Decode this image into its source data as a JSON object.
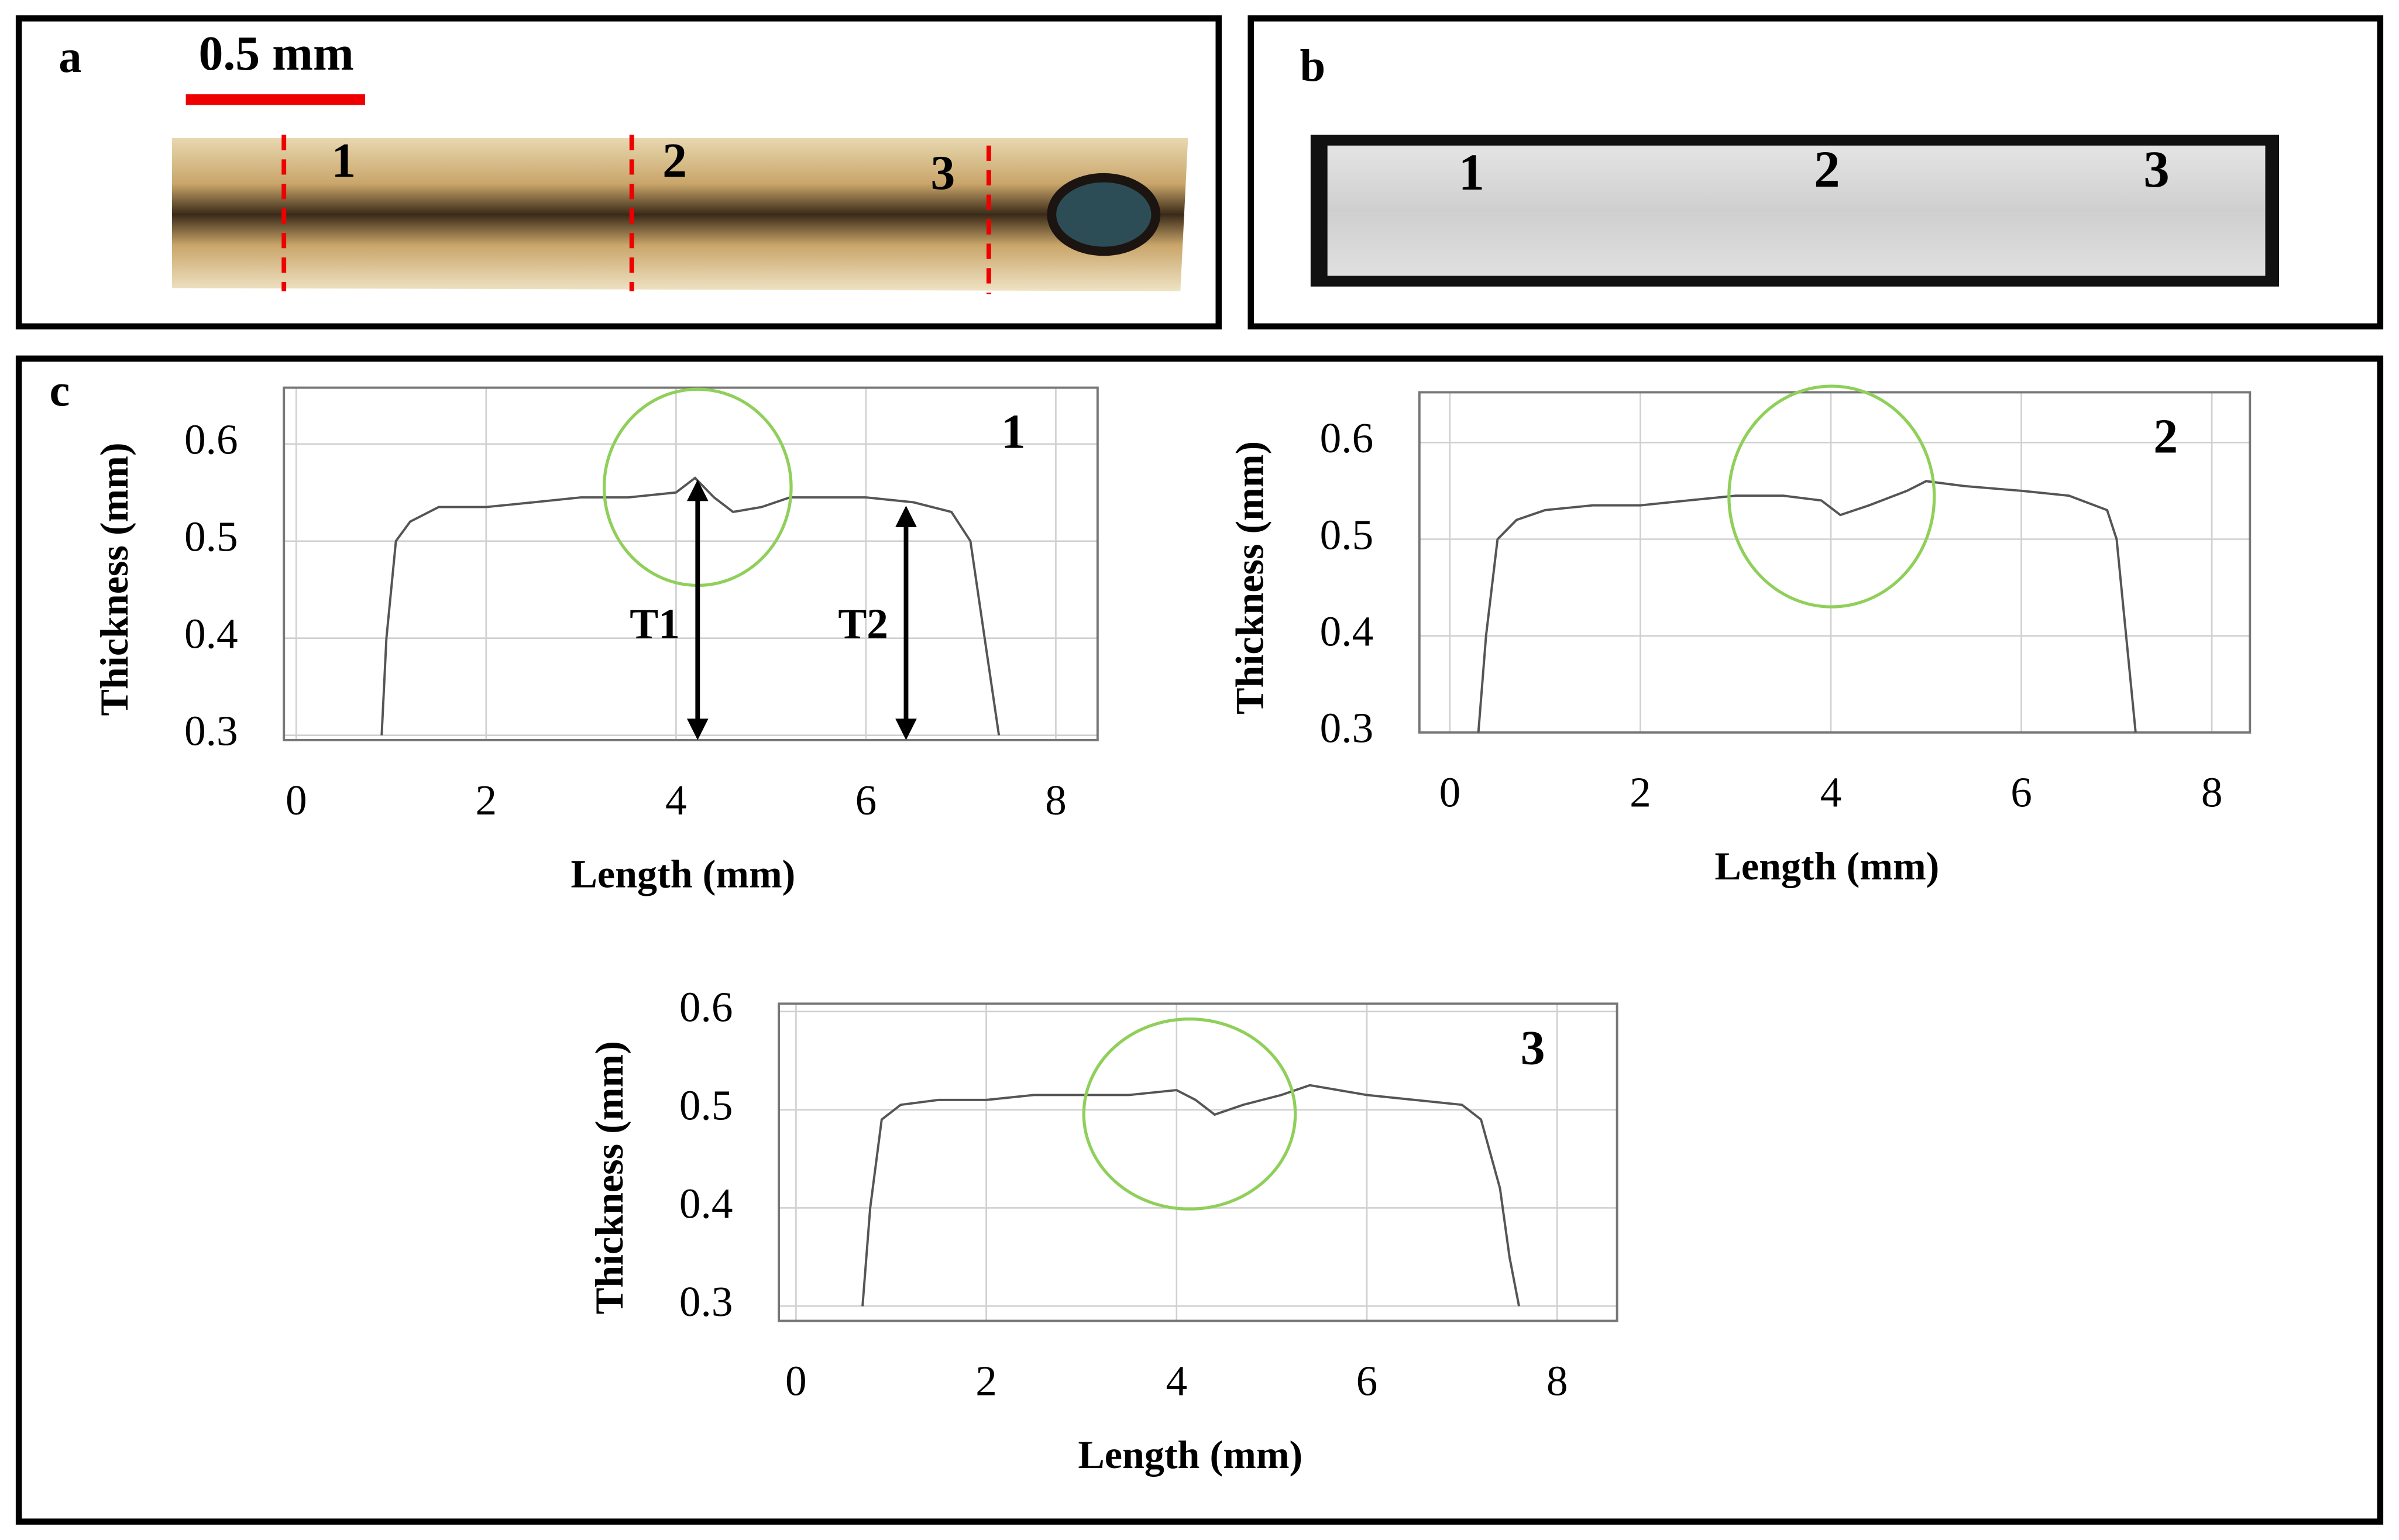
{
  "panels": {
    "a": {
      "label": "a",
      "scale": "0.5 mm",
      "marks": [
        "1",
        "2",
        "3"
      ]
    },
    "b": {
      "label": "b",
      "marks": [
        "1",
        "2",
        "3"
      ]
    },
    "c": {
      "label": "c"
    }
  },
  "chart_data": [
    {
      "type": "line",
      "title": "1",
      "x_label": "Length (mm)",
      "y_label": "Thickness (mm)",
      "color": "#555555",
      "grid": true,
      "x": [
        0.9,
        0.95,
        1.05,
        1.2,
        1.5,
        2,
        2.5,
        3,
        3.5,
        4,
        4.2,
        4.4,
        4.6,
        4.9,
        5.2,
        5.6,
        6,
        6.5,
        6.9,
        7.1,
        7.25,
        7.4
      ],
      "values": [
        0.3,
        0.4,
        0.5,
        0.52,
        0.535,
        0.535,
        0.54,
        0.545,
        0.545,
        0.55,
        0.565,
        0.545,
        0.53,
        0.535,
        0.545,
        0.545,
        0.545,
        0.54,
        0.53,
        0.5,
        0.4,
        0.3
      ],
      "xlim": [
        -0.13,
        8.44
      ],
      "xticks": [
        0,
        2,
        4,
        6,
        8
      ],
      "ylim": [
        0.295,
        0.658
      ],
      "yticks": [
        0.3,
        0.4,
        0.5,
        0.6
      ],
      "annotations": [
        "T1",
        "T2"
      ]
    },
    {
      "type": "line",
      "title": "2",
      "x_label": "Length (mm)",
      "y_label": "Thickness (mm)",
      "color": "#555555",
      "grid": true,
      "x": [
        0.3,
        0.38,
        0.5,
        0.7,
        1,
        1.5,
        2,
        2.5,
        3,
        3.5,
        3.9,
        4.1,
        4.4,
        4.8,
        5.0,
        5.4,
        6,
        6.5,
        6.9,
        7.0,
        7.1,
        7.2
      ],
      "values": [
        0.3,
        0.4,
        0.5,
        0.52,
        0.53,
        0.535,
        0.535,
        0.54,
        0.545,
        0.545,
        0.54,
        0.525,
        0.535,
        0.55,
        0.56,
        0.555,
        0.55,
        0.545,
        0.53,
        0.5,
        0.4,
        0.3
      ],
      "xlim": [
        -0.32,
        8.4
      ],
      "xticks": [
        0,
        2,
        4,
        6,
        8
      ],
      "ylim": [
        0.3,
        0.652
      ],
      "yticks": [
        0.3,
        0.4,
        0.5,
        0.6
      ]
    },
    {
      "type": "line",
      "title": "3",
      "x_label": "Length (mm)",
      "y_label": "Thickness (mm)",
      "color": "#555555",
      "grid": true,
      "x": [
        0.7,
        0.78,
        0.9,
        1.1,
        1.5,
        2,
        2.5,
        3,
        3.5,
        4,
        4.2,
        4.4,
        4.7,
        5.1,
        5.4,
        6,
        6.5,
        7,
        7.2,
        7.4,
        7.5,
        7.6
      ],
      "values": [
        0.3,
        0.4,
        0.49,
        0.505,
        0.51,
        0.51,
        0.515,
        0.515,
        0.515,
        0.52,
        0.51,
        0.495,
        0.505,
        0.515,
        0.525,
        0.515,
        0.51,
        0.505,
        0.49,
        0.42,
        0.35,
        0.3
      ],
      "xlim": [
        -0.18,
        8.63
      ],
      "xticks": [
        0,
        2,
        4,
        6,
        8
      ],
      "ylim": [
        0.285,
        0.608
      ],
      "yticks": [
        0.3,
        0.4,
        0.5,
        0.6
      ]
    }
  ]
}
